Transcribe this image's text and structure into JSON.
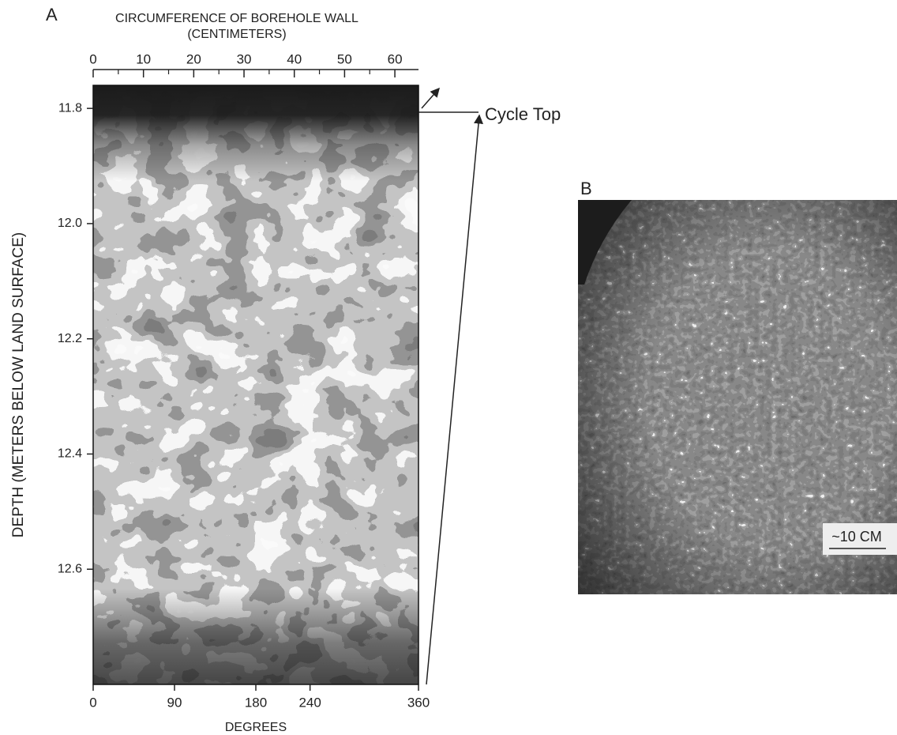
{
  "panel_a": {
    "label": "A",
    "top_axis_title": "CIRCUMFERENCE OF BOREHOLE WALL",
    "top_axis_subtitle": "(CENTIMETERS)",
    "top_ticks": [
      0,
      10,
      20,
      30,
      40,
      50,
      60
    ],
    "top_minor_ticks": [
      5,
      15,
      25,
      35,
      45,
      55
    ],
    "top_lim": [
      0,
      64.7
    ],
    "y_axis_title": "DEPTH (METERS BELOW LAND SURFACE)",
    "ylim": [
      11.76,
      12.8
    ],
    "yticks": [
      {
        "value": 11.8,
        "label": "11.8"
      },
      {
        "value": 12.0,
        "label": "12.0"
      },
      {
        "value": 12.2,
        "label": "12.2"
      },
      {
        "value": 12.4,
        "label": "12.4"
      },
      {
        "value": 12.6,
        "label": "12.6"
      }
    ],
    "bottom_lim": [
      0,
      360
    ],
    "bottom_ticks": [
      0,
      90,
      180,
      240,
      360
    ],
    "bottom_axis_title": "DEGREES",
    "annotation": "Cycle Top"
  },
  "panel_b": {
    "label": "B",
    "scale_label": "~10 CM"
  }
}
